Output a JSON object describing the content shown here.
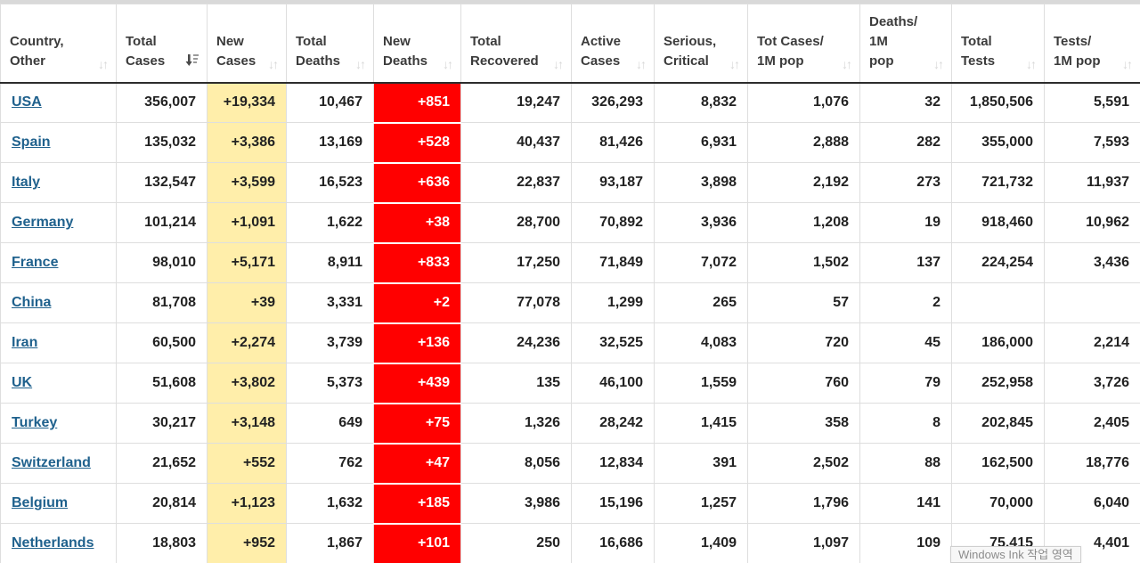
{
  "colors": {
    "new_cases_bg": "#FFEEAA",
    "new_deaths_bg": "#FF0000",
    "link": "#1F618D",
    "header_text": "#3B3B3B"
  },
  "tooltip": {
    "text": "Windows Ink 작업 영역"
  },
  "table": {
    "columns": [
      {
        "key": "country",
        "label": "Country,\nOther",
        "sort": "inactive"
      },
      {
        "key": "total_cases",
        "label": "Total\nCases",
        "sort": "active_desc"
      },
      {
        "key": "new_cases",
        "label": "New\nCases",
        "sort": "inactive"
      },
      {
        "key": "total_deaths",
        "label": "Total\nDeaths",
        "sort": "inactive"
      },
      {
        "key": "new_deaths",
        "label": "New\nDeaths",
        "sort": "inactive"
      },
      {
        "key": "total_recovered",
        "label": "Total\nRecovered",
        "sort": "inactive"
      },
      {
        "key": "active_cases",
        "label": "Active\nCases",
        "sort": "inactive"
      },
      {
        "key": "serious_critical",
        "label": "Serious,\nCritical",
        "sort": "inactive"
      },
      {
        "key": "tot_cases_1m",
        "label": "Tot Cases/\n1M pop",
        "sort": "inactive"
      },
      {
        "key": "deaths_1m",
        "label": "Deaths/\n1M\npop",
        "sort": "inactive"
      },
      {
        "key": "total_tests",
        "label": "Total\nTests",
        "sort": "inactive"
      },
      {
        "key": "tests_1m",
        "label": "Tests/\n1M pop",
        "sort": "inactive"
      }
    ],
    "rows": [
      {
        "country": "USA",
        "total_cases": "356,007",
        "new_cases": "+19,334",
        "total_deaths": "10,467",
        "new_deaths": "+851",
        "total_recovered": "19,247",
        "active_cases": "326,293",
        "serious_critical": "8,832",
        "tot_cases_1m": "1,076",
        "deaths_1m": "32",
        "total_tests": "1,850,506",
        "tests_1m": "5,591"
      },
      {
        "country": "Spain",
        "total_cases": "135,032",
        "new_cases": "+3,386",
        "total_deaths": "13,169",
        "new_deaths": "+528",
        "total_recovered": "40,437",
        "active_cases": "81,426",
        "serious_critical": "6,931",
        "tot_cases_1m": "2,888",
        "deaths_1m": "282",
        "total_tests": "355,000",
        "tests_1m": "7,593"
      },
      {
        "country": "Italy",
        "total_cases": "132,547",
        "new_cases": "+3,599",
        "total_deaths": "16,523",
        "new_deaths": "+636",
        "total_recovered": "22,837",
        "active_cases": "93,187",
        "serious_critical": "3,898",
        "tot_cases_1m": "2,192",
        "deaths_1m": "273",
        "total_tests": "721,732",
        "tests_1m": "11,937"
      },
      {
        "country": "Germany",
        "total_cases": "101,214",
        "new_cases": "+1,091",
        "total_deaths": "1,622",
        "new_deaths": "+38",
        "total_recovered": "28,700",
        "active_cases": "70,892",
        "serious_critical": "3,936",
        "tot_cases_1m": "1,208",
        "deaths_1m": "19",
        "total_tests": "918,460",
        "tests_1m": "10,962"
      },
      {
        "country": "France",
        "total_cases": "98,010",
        "new_cases": "+5,171",
        "total_deaths": "8,911",
        "new_deaths": "+833",
        "total_recovered": "17,250",
        "active_cases": "71,849",
        "serious_critical": "7,072",
        "tot_cases_1m": "1,502",
        "deaths_1m": "137",
        "total_tests": "224,254",
        "tests_1m": "3,436"
      },
      {
        "country": "China",
        "total_cases": "81,708",
        "new_cases": "+39",
        "total_deaths": "3,331",
        "new_deaths": "+2",
        "total_recovered": "77,078",
        "active_cases": "1,299",
        "serious_critical": "265",
        "tot_cases_1m": "57",
        "deaths_1m": "2",
        "total_tests": "",
        "tests_1m": ""
      },
      {
        "country": "Iran",
        "total_cases": "60,500",
        "new_cases": "+2,274",
        "total_deaths": "3,739",
        "new_deaths": "+136",
        "total_recovered": "24,236",
        "active_cases": "32,525",
        "serious_critical": "4,083",
        "tot_cases_1m": "720",
        "deaths_1m": "45",
        "total_tests": "186,000",
        "tests_1m": "2,214"
      },
      {
        "country": "UK",
        "total_cases": "51,608",
        "new_cases": "+3,802",
        "total_deaths": "5,373",
        "new_deaths": "+439",
        "total_recovered": "135",
        "active_cases": "46,100",
        "serious_critical": "1,559",
        "tot_cases_1m": "760",
        "deaths_1m": "79",
        "total_tests": "252,958",
        "tests_1m": "3,726"
      },
      {
        "country": "Turkey",
        "total_cases": "30,217",
        "new_cases": "+3,148",
        "total_deaths": "649",
        "new_deaths": "+75",
        "total_recovered": "1,326",
        "active_cases": "28,242",
        "serious_critical": "1,415",
        "tot_cases_1m": "358",
        "deaths_1m": "8",
        "total_tests": "202,845",
        "tests_1m": "2,405"
      },
      {
        "country": "Switzerland",
        "total_cases": "21,652",
        "new_cases": "+552",
        "total_deaths": "762",
        "new_deaths": "+47",
        "total_recovered": "8,056",
        "active_cases": "12,834",
        "serious_critical": "391",
        "tot_cases_1m": "2,502",
        "deaths_1m": "88",
        "total_tests": "162,500",
        "tests_1m": "18,776"
      },
      {
        "country": "Belgium",
        "total_cases": "20,814",
        "new_cases": "+1,123",
        "total_deaths": "1,632",
        "new_deaths": "+185",
        "total_recovered": "3,986",
        "active_cases": "15,196",
        "serious_critical": "1,257",
        "tot_cases_1m": "1,796",
        "deaths_1m": "141",
        "total_tests": "70,000",
        "tests_1m": "6,040"
      },
      {
        "country": "Netherlands",
        "total_cases": "18,803",
        "new_cases": "+952",
        "total_deaths": "1,867",
        "new_deaths": "+101",
        "total_recovered": "250",
        "active_cases": "16,686",
        "serious_critical": "1,409",
        "tot_cases_1m": "1,097",
        "deaths_1m": "109",
        "total_tests": "75,415",
        "tests_1m": "4,401"
      }
    ]
  }
}
